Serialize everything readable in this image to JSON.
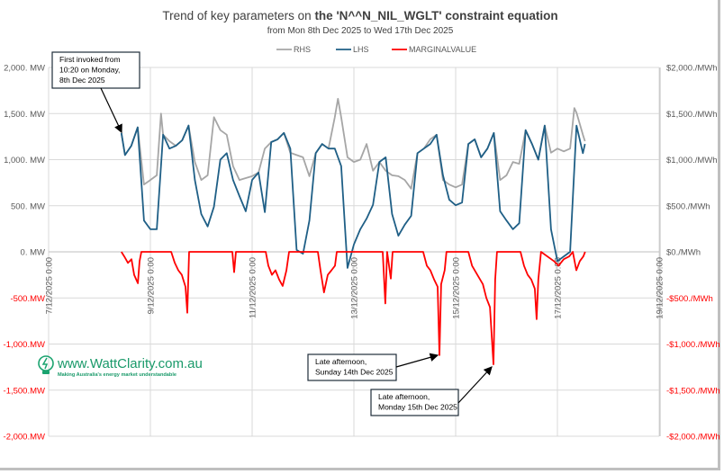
{
  "chart_data": {
    "type": "line",
    "title_plain": "Trend of key parameters on ",
    "title_bold": "the 'N^^N_NIL_WGLT' constraint equation",
    "subtitle": "from Mon 8th Dec 2025 to Wed 17th Dec 2025",
    "legend_position": "top",
    "grid": true,
    "x_ticks": [
      "7/12/2025 0:00",
      "9/12/2025 0:00",
      "11/12/2025 0:00",
      "13/12/2025 0:00",
      "15/12/2025 0:00",
      "17/12/2025 0:00",
      "19/12/2025 0:00"
    ],
    "xlim": [
      "2025-12-07 00:00",
      "2025-12-19 00:00"
    ],
    "y_left": {
      "ylim": [
        -2000,
        2000
      ],
      "ticks": [
        "2,000. MW",
        "1,500. MW",
        "1,000. MW",
        "500. MW",
        "0. MW",
        "-500.MW",
        "-1,000.MW",
        "-1,500.MW",
        "-2,000.MW"
      ]
    },
    "y_right": {
      "ylim": [
        -2000,
        2000
      ],
      "ticks": [
        "$2,000./MWh",
        "$1,500./MWh",
        "$1,000./MWh",
        "$500./MWh",
        "$0./MWh",
        "-$500./MWh",
        "-$1,000./MWh",
        "-$1,500./MWh",
        "-$2,000./MWh"
      ]
    },
    "colors": {
      "RHS": "#a6a6a6",
      "LHS": "#1f5f86",
      "MARGINALVALUE": "#ff0000",
      "negative_tick": "#ff0000"
    },
    "series": [
      {
        "name": "RHS",
        "axis": "left",
        "points": [
          [
            "2025-12-08 10:20",
            1290
          ],
          [
            "2025-12-08 12:00",
            1050
          ],
          [
            "2025-12-08 15:00",
            1150
          ],
          [
            "2025-12-08 18:00",
            1350
          ],
          [
            "2025-12-08 21:00",
            730
          ],
          [
            "2025-12-09 00:00",
            780
          ],
          [
            "2025-12-09 03:00",
            830
          ],
          [
            "2025-12-09 05:00",
            1500
          ],
          [
            "2025-12-09 06:00",
            1270
          ],
          [
            "2025-12-09 09:00",
            1200
          ],
          [
            "2025-12-09 12:00",
            1150
          ],
          [
            "2025-12-09 15:00",
            1210
          ],
          [
            "2025-12-09 18:00",
            1370
          ],
          [
            "2025-12-09 21:00",
            975
          ],
          [
            "2025-12-10 00:00",
            780
          ],
          [
            "2025-12-10 03:00",
            830
          ],
          [
            "2025-12-10 06:00",
            1460
          ],
          [
            "2025-12-10 09:00",
            1320
          ],
          [
            "2025-12-10 12:00",
            1270
          ],
          [
            "2025-12-10 15:00",
            930
          ],
          [
            "2025-12-10 18:00",
            780
          ],
          [
            "2025-12-10 21:00",
            800
          ],
          [
            "2025-12-11 00:00",
            820
          ],
          [
            "2025-12-11 03:00",
            860
          ],
          [
            "2025-12-11 06:00",
            1120
          ],
          [
            "2025-12-11 09:00",
            1190
          ],
          [
            "2025-12-11 12:00",
            1220
          ],
          [
            "2025-12-11 15:00",
            1290
          ],
          [
            "2025-12-11 18:00",
            1075
          ],
          [
            "2025-12-11 21:00",
            1050
          ],
          [
            "2025-12-12 00:00",
            1025
          ],
          [
            "2025-12-12 03:00",
            820
          ],
          [
            "2025-12-12 06:00",
            1070
          ],
          [
            "2025-12-12 09:00",
            1170
          ],
          [
            "2025-12-12 12:00",
            1120
          ],
          [
            "2025-12-12 15:00",
            1460
          ],
          [
            "2025-12-12 16:30",
            1660
          ],
          [
            "2025-12-12 18:00",
            1460
          ],
          [
            "2025-12-12 21:00",
            1025
          ],
          [
            "2025-12-13 00:00",
            975
          ],
          [
            "2025-12-13 03:00",
            1000
          ],
          [
            "2025-12-13 06:00",
            1170
          ],
          [
            "2025-12-13 09:00",
            880
          ],
          [
            "2025-12-13 12:00",
            975
          ],
          [
            "2025-12-13 15:00",
            880
          ],
          [
            "2025-12-13 18:00",
            830
          ],
          [
            "2025-12-13 21:00",
            820
          ],
          [
            "2025-12-14 00:00",
            780
          ],
          [
            "2025-12-14 03:00",
            685
          ],
          [
            "2025-12-14 06:00",
            1070
          ],
          [
            "2025-12-14 09:00",
            1120
          ],
          [
            "2025-12-14 12:00",
            1220
          ],
          [
            "2025-12-14 15:00",
            1270
          ],
          [
            "2025-12-14 18:00",
            780
          ],
          [
            "2025-12-14 21:00",
            730
          ],
          [
            "2025-12-15 00:00",
            700
          ],
          [
            "2025-12-15 03:00",
            730
          ],
          [
            "2025-12-15 06:00",
            1170
          ],
          [
            "2025-12-15 09:00",
            1220
          ],
          [
            "2025-12-15 12:00",
            1025
          ],
          [
            "2025-12-15 15:00",
            1120
          ],
          [
            "2025-12-15 18:00",
            1290
          ],
          [
            "2025-12-15 21:00",
            780
          ],
          [
            "2025-12-16 00:00",
            830
          ],
          [
            "2025-12-16 03:00",
            975
          ],
          [
            "2025-12-16 06:00",
            955
          ],
          [
            "2025-12-16 09:00",
            1320
          ],
          [
            "2025-12-16 12:00",
            1170
          ],
          [
            "2025-12-16 15:00",
            1000
          ],
          [
            "2025-12-16 18:00",
            1370
          ],
          [
            "2025-12-16 21:00",
            1075
          ],
          [
            "2025-12-17 00:00",
            1120
          ],
          [
            "2025-12-17 03:00",
            1090
          ],
          [
            "2025-12-17 06:00",
            1120
          ],
          [
            "2025-12-17 08:00",
            1560
          ],
          [
            "2025-12-17 09:00",
            1510
          ],
          [
            "2025-12-17 12:00",
            1270
          ],
          [
            "2025-12-17 13:00",
            1200
          ]
        ]
      },
      {
        "name": "LHS",
        "axis": "left",
        "points": [
          [
            "2025-12-08 10:20",
            1290
          ],
          [
            "2025-12-08 12:00",
            1050
          ],
          [
            "2025-12-08 15:00",
            1150
          ],
          [
            "2025-12-08 18:00",
            1350
          ],
          [
            "2025-12-08 21:00",
            340
          ],
          [
            "2025-12-09 00:00",
            245
          ],
          [
            "2025-12-09 03:00",
            245
          ],
          [
            "2025-12-09 06:00",
            1270
          ],
          [
            "2025-12-09 09:00",
            1120
          ],
          [
            "2025-12-09 12:00",
            1150
          ],
          [
            "2025-12-09 15:00",
            1210
          ],
          [
            "2025-12-09 18:00",
            1370
          ],
          [
            "2025-12-09 21:00",
            780
          ],
          [
            "2025-12-10 00:00",
            410
          ],
          [
            "2025-12-10 03:00",
            275
          ],
          [
            "2025-12-10 06:00",
            490
          ],
          [
            "2025-12-10 09:00",
            1000
          ],
          [
            "2025-12-10 12:00",
            1070
          ],
          [
            "2025-12-10 15:00",
            780
          ],
          [
            "2025-12-10 18:00",
            605
          ],
          [
            "2025-12-10 21:00",
            440
          ],
          [
            "2025-12-11 00:00",
            780
          ],
          [
            "2025-12-11 03:00",
            860
          ],
          [
            "2025-12-11 06:00",
            430
          ],
          [
            "2025-12-11 09:00",
            1190
          ],
          [
            "2025-12-11 12:00",
            1220
          ],
          [
            "2025-12-11 15:00",
            1290
          ],
          [
            "2025-12-11 18:00",
            1120
          ],
          [
            "2025-12-11 21:00",
            20
          ],
          [
            "2025-12-12 00:00",
            -20
          ],
          [
            "2025-12-12 03:00",
            340
          ],
          [
            "2025-12-12 06:00",
            1070
          ],
          [
            "2025-12-12 09:00",
            1170
          ],
          [
            "2025-12-12 12:00",
            1120
          ],
          [
            "2025-12-12 15:00",
            1120
          ],
          [
            "2025-12-12 18:00",
            930
          ],
          [
            "2025-12-12 21:00",
            -175
          ],
          [
            "2025-12-13 00:00",
            80
          ],
          [
            "2025-12-13 03:00",
            245
          ],
          [
            "2025-12-13 06:00",
            360
          ],
          [
            "2025-12-13 09:00",
            510
          ],
          [
            "2025-12-13 12:00",
            975
          ],
          [
            "2025-12-13 15:00",
            1025
          ],
          [
            "2025-12-13 18:00",
            410
          ],
          [
            "2025-12-13 21:00",
            175
          ],
          [
            "2025-12-14 00:00",
            295
          ],
          [
            "2025-12-14 03:00",
            390
          ],
          [
            "2025-12-14 06:00",
            1070
          ],
          [
            "2025-12-14 09:00",
            1120
          ],
          [
            "2025-12-14 12:00",
            1170
          ],
          [
            "2025-12-14 15:00",
            1270
          ],
          [
            "2025-12-14 18:00",
            830
          ],
          [
            "2025-12-14 21:00",
            565
          ],
          [
            "2025-12-15 00:00",
            505
          ],
          [
            "2025-12-15 03:00",
            535
          ],
          [
            "2025-12-15 06:00",
            1170
          ],
          [
            "2025-12-15 09:00",
            1220
          ],
          [
            "2025-12-15 12:00",
            1025
          ],
          [
            "2025-12-15 15:00",
            1120
          ],
          [
            "2025-12-15 18:00",
            1290
          ],
          [
            "2025-12-15 21:00",
            440
          ],
          [
            "2025-12-16 00:00",
            340
          ],
          [
            "2025-12-16 03:00",
            245
          ],
          [
            "2025-12-16 06:00",
            310
          ],
          [
            "2025-12-16 09:00",
            1320
          ],
          [
            "2025-12-16 12:00",
            1170
          ],
          [
            "2025-12-16 15:00",
            1000
          ],
          [
            "2025-12-16 18:00",
            1370
          ],
          [
            "2025-12-16 21:00",
            245
          ],
          [
            "2025-12-17 00:00",
            -100
          ],
          [
            "2025-12-17 03:00",
            -50
          ],
          [
            "2025-12-17 06:00",
            0
          ],
          [
            "2025-12-17 09:00",
            1370
          ],
          [
            "2025-12-17 12:00",
            1070
          ],
          [
            "2025-12-17 13:00",
            1170
          ]
        ]
      },
      {
        "name": "MARGINALVALUE",
        "axis": "right",
        "points": [
          [
            "2025-12-08 10:20",
            0
          ],
          [
            "2025-12-08 11:40",
            -50
          ],
          [
            "2025-12-08 13:25",
            -120
          ],
          [
            "2025-12-08 15:05",
            -80
          ],
          [
            "2025-12-08 16:20",
            -250
          ],
          [
            "2025-12-08 18:05",
            -340
          ],
          [
            "2025-12-08 18:55",
            -100
          ],
          [
            "2025-12-08 19:45",
            0
          ],
          [
            "2025-12-09 09:50",
            0
          ],
          [
            "2025-12-09 11:30",
            -120
          ],
          [
            "2025-12-09 13:10",
            -200
          ],
          [
            "2025-12-09 14:50",
            -250
          ],
          [
            "2025-12-09 16:35",
            -380
          ],
          [
            "2025-12-09 17:25",
            -660
          ],
          [
            "2025-12-09 18:15",
            0
          ],
          [
            "2025-12-10 14:40",
            0
          ],
          [
            "2025-12-10 15:30",
            -220
          ],
          [
            "2025-12-10 16:20",
            0
          ],
          [
            "2025-12-11 06:25",
            0
          ],
          [
            "2025-12-11 07:40",
            -150
          ],
          [
            "2025-12-11 09:20",
            -250
          ],
          [
            "2025-12-11 11:00",
            -200
          ],
          [
            "2025-12-11 12:45",
            -300
          ],
          [
            "2025-12-11 14:25",
            -370
          ],
          [
            "2025-12-11 16:10",
            -200
          ],
          [
            "2025-12-11 17:25",
            0
          ],
          [
            "2025-12-12 07:00",
            0
          ],
          [
            "2025-12-12 08:15",
            -200
          ],
          [
            "2025-12-12 09:55",
            -440
          ],
          [
            "2025-12-12 11:40",
            -250
          ],
          [
            "2025-12-12 13:25",
            -200
          ],
          [
            "2025-12-12 15:05",
            -150
          ],
          [
            "2025-12-12 15:55",
            0
          ],
          [
            "2025-12-13 13:35",
            0
          ],
          [
            "2025-12-13 14:50",
            -560
          ],
          [
            "2025-12-13 15:40",
            0
          ],
          [
            "2025-12-13 17:25",
            -290
          ],
          [
            "2025-12-13 18:15",
            0
          ],
          [
            "2025-12-14 08:40",
            0
          ],
          [
            "2025-12-14 10:25",
            -150
          ],
          [
            "2025-12-14 12:05",
            -200
          ],
          [
            "2025-12-14 13:50",
            -300
          ],
          [
            "2025-12-14 15:30",
            -380
          ],
          [
            "2025-12-14 16:20",
            -1120
          ],
          [
            "2025-12-14 17:10",
            -350
          ],
          [
            "2025-12-14 18:50",
            -200
          ],
          [
            "2025-12-14 19:40",
            0
          ],
          [
            "2025-12-15 06:00",
            0
          ],
          [
            "2025-12-15 07:45",
            -150
          ],
          [
            "2025-12-15 10:15",
            -250
          ],
          [
            "2025-12-15 12:50",
            -350
          ],
          [
            "2025-12-15 14:30",
            -500
          ],
          [
            "2025-12-15 16:10",
            -600
          ],
          [
            "2025-12-15 17:50",
            -1220
          ],
          [
            "2025-12-15 18:40",
            -300
          ],
          [
            "2025-12-15 19:30",
            0
          ],
          [
            "2025-12-16 06:35",
            0
          ],
          [
            "2025-12-16 08:15",
            -150
          ],
          [
            "2025-12-16 10:00",
            -250
          ],
          [
            "2025-12-16 11:40",
            -300
          ],
          [
            "2025-12-16 13:20",
            -400
          ],
          [
            "2025-12-16 14:10",
            -730
          ],
          [
            "2025-12-16 15:00",
            -300
          ],
          [
            "2025-12-16 16:15",
            0
          ],
          [
            "2025-12-16 22:20",
            -100
          ],
          [
            "2025-12-17 00:30",
            -150
          ],
          [
            "2025-12-17 03:00",
            -80
          ],
          [
            "2025-12-17 05:35",
            -50
          ],
          [
            "2025-12-17 07:15",
            0
          ],
          [
            "2025-12-17 08:55",
            -200
          ],
          [
            "2025-12-17 10:35",
            -100
          ],
          [
            "2025-12-17 12:15",
            -50
          ],
          [
            "2025-12-17 13:05",
            0
          ]
        ]
      }
    ],
    "annotations": [
      {
        "lines": [
          "First invoked from",
          "10:20 on Monday,",
          "8th Dec 2025"
        ]
      },
      {
        "lines": [
          "Late afternoon,",
          "Sunday 14th Dec 2025"
        ]
      },
      {
        "lines": [
          "Late afternoon,",
          "Monday 15th Dec 2025"
        ]
      }
    ]
  },
  "watermark": {
    "site": "www.WattClarity.com.au",
    "tagline": "Making Australia's energy market understandable"
  }
}
